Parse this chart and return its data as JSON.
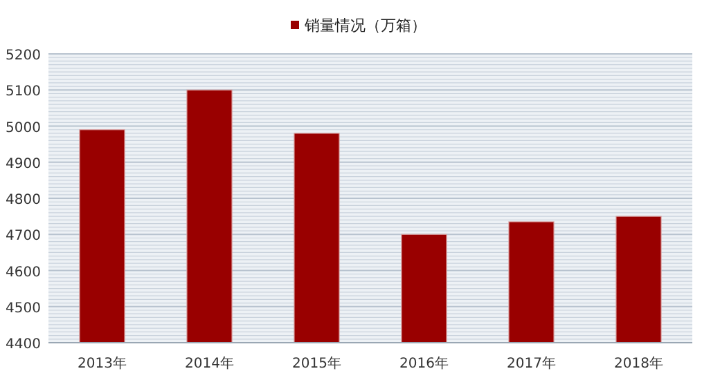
{
  "chart_data": {
    "type": "bar",
    "categories": [
      "2013年",
      "2014年",
      "2015年",
      "2016年",
      "2017年",
      "2018年"
    ],
    "series": [
      {
        "name": "销量情况（万箱）",
        "color": "#990000",
        "values": [
          4990,
          5100,
          4980,
          4700,
          4735,
          4750
        ]
      }
    ],
    "ylim": [
      4400,
      5200
    ],
    "yticks": [
      4400,
      4500,
      4600,
      4700,
      4800,
      4900,
      5000,
      5100,
      5200
    ],
    "grid": "y",
    "legend": "top"
  }
}
